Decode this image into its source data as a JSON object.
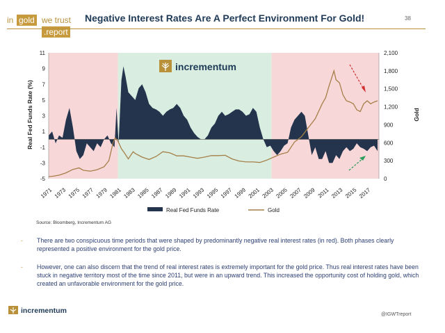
{
  "header": {
    "logo_words": [
      "in",
      "gold",
      "we trust",
      ".report"
    ],
    "title": "Negative Interest Rates Are A Perfect Environment For Gold!",
    "page_number": "38"
  },
  "chart_data": {
    "type": "area-line",
    "inner_logo": "incrementum",
    "y1label": "Real Fed Funds Rate (%)",
    "y2label": "Gold",
    "y1lim": [
      -5,
      11
    ],
    "y2lim": [
      0,
      2100
    ],
    "y1ticks": [
      "11",
      "9",
      "7",
      "5",
      "3",
      "1",
      "-1",
      "-3",
      "-5"
    ],
    "y2ticks": [
      "2,100",
      "1,800",
      "1,500",
      "1,200",
      "900",
      "600",
      "300",
      "0"
    ],
    "xticks": [
      "1971",
      "1973",
      "1975",
      "1977",
      "1979",
      "1981",
      "1983",
      "1985",
      "1987",
      "1989",
      "1991",
      "1993",
      "1995",
      "1997",
      "1999",
      "2001",
      "2003",
      "2005",
      "2007",
      "2009",
      "2011",
      "2013",
      "2015",
      "2017"
    ],
    "shaded_periods": [
      {
        "from": 1970.5,
        "to": 1980.5,
        "color": "#f8d7d9",
        "label": "negative real rates"
      },
      {
        "from": 1980.5,
        "to": 2002.7,
        "color": "#d9eee1",
        "label": "positive real rates"
      },
      {
        "from": 2002.7,
        "to": 2018.2,
        "color": "#f8d7d9",
        "label": "negative real rates"
      }
    ],
    "series": [
      {
        "name": "Real Fed Funds Rate",
        "type": "area",
        "color": "#24344d",
        "x": [
          1970.5,
          1971,
          1971.5,
          1972,
          1972.5,
          1973,
          1973.5,
          1974,
          1974.5,
          1975,
          1975.5,
          1976,
          1976.5,
          1977,
          1977.5,
          1978,
          1978.5,
          1979,
          1979.5,
          1980,
          1980.3,
          1980.6,
          1981,
          1981.3,
          1981.6,
          1982,
          1982.5,
          1983,
          1983.5,
          1984,
          1984.5,
          1985,
          1985.5,
          1986,
          1986.5,
          1987,
          1987.5,
          1988,
          1988.5,
          1989,
          1989.5,
          1990,
          1990.5,
          1991,
          1991.5,
          1992,
          1992.5,
          1993,
          1993.5,
          1994,
          1994.5,
          1995,
          1995.5,
          1996,
          1996.5,
          1997,
          1997.5,
          1998,
          1998.5,
          1999,
          1999.5,
          2000,
          2000.5,
          2001,
          2001.5,
          2002,
          2002.5,
          2003,
          2003.5,
          2004,
          2004.5,
          2005,
          2005.5,
          2006,
          2006.5,
          2007,
          2007.5,
          2008,
          2008.5,
          2009,
          2009.5,
          2010,
          2010.5,
          2011,
          2011.5,
          2012,
          2012.5,
          2013,
          2013.5,
          2014,
          2014.5,
          2015,
          2015.5,
          2016,
          2016.5,
          2017,
          2017.5,
          2018
        ],
        "values": [
          0.5,
          1.0,
          -0.5,
          0.5,
          0.2,
          2.5,
          4.0,
          1.5,
          -1.5,
          -2.5,
          -2.0,
          -0.5,
          -1.0,
          -1.5,
          -0.5,
          -1.0,
          0.0,
          0.5,
          -0.5,
          -1.0,
          4.0,
          -0.5,
          7.5,
          9.3,
          8.0,
          6.0,
          5.5,
          5.0,
          6.5,
          7.0,
          6.0,
          4.5,
          4.0,
          3.8,
          3.5,
          3.0,
          3.5,
          3.8,
          4.0,
          4.5,
          4.0,
          3.0,
          2.5,
          1.5,
          0.8,
          0.3,
          0.0,
          0.0,
          0.5,
          1.5,
          2.0,
          3.0,
          3.5,
          3.0,
          3.2,
          3.5,
          3.8,
          3.8,
          3.5,
          3.0,
          3.2,
          4.0,
          3.5,
          1.5,
          0.0,
          -1.0,
          -0.8,
          -1.5,
          -2.0,
          -1.5,
          -0.8,
          -0.5,
          1.5,
          2.5,
          3.0,
          3.5,
          3.0,
          0.5,
          -2.0,
          -1.0,
          -2.5,
          -2.5,
          -1.5,
          -3.0,
          -3.0,
          -2.0,
          -2.5,
          -1.5,
          -1.0,
          -1.5,
          -1.2,
          -0.5,
          -1.0,
          -1.2,
          -1.5,
          -1.0,
          -0.8,
          -1.5
        ]
      },
      {
        "name": "Gold",
        "type": "line",
        "color": "#a57f48",
        "axis": "right",
        "x": [
          1970.5,
          1971,
          1972,
          1973,
          1974,
          1974.9,
          1975.5,
          1976.5,
          1977.5,
          1978.5,
          1979.2,
          1979.8,
          1980.1,
          1980.5,
          1981,
          1981.5,
          1982,
          1982.7,
          1983,
          1984,
          1985,
          1986,
          1987,
          1988,
          1989,
          1990,
          1991,
          1992,
          1993,
          1994,
          1995,
          1996,
          1997,
          1998,
          1999,
          2000,
          2001,
          2002,
          2003,
          2004,
          2005,
          2006,
          2007,
          2008,
          2009,
          2010,
          2010.5,
          2011,
          2011.7,
          2012,
          2012.5,
          2013,
          2013.5,
          2014,
          2014.5,
          2015,
          2015.5,
          2016,
          2016.5,
          2017,
          2017.5,
          2018
        ],
        "values": [
          36,
          40,
          58,
          97,
          154,
          180,
          140,
          125,
          150,
          200,
          300,
          600,
          680,
          630,
          500,
          420,
          330,
          450,
          420,
          360,
          320,
          370,
          450,
          430,
          380,
          380,
          360,
          340,
          360,
          385,
          385,
          390,
          330,
          295,
          280,
          280,
          270,
          310,
          360,
          410,
          440,
          610,
          700,
          850,
          1000,
          1250,
          1350,
          1550,
          1800,
          1650,
          1600,
          1400,
          1300,
          1280,
          1250,
          1150,
          1120,
          1250,
          1300,
          1250,
          1280,
          1300
        ]
      }
    ],
    "annotations": [
      "arrow: gold falling from 2011 peak (red)",
      "arrow: real rates trending up since 2011 (green)"
    ],
    "legend": {
      "position": "bottom",
      "items": [
        "Real Fed Funds Rate",
        "Gold"
      ]
    }
  },
  "source": "Source: Bloomberg, Incrementum AG",
  "bullets": [
    "There are two conspicuous time periods that were shaped by predominantly negative real interest rates (in red). Both phases clearly represented a positive environment for the gold price.",
    "However, one can also discern that the trend of real interest rates is extremely important for the gold price. Thus real interest rates have been stuck in negative territory most of the time since 2011, but were in an upward trend. This increased the opportunity cost of holding gold, which created an unfavorable environment for the gold price."
  ],
  "bullet_marker": "-",
  "footer": {
    "logo_text": "incrementum",
    "twitter": "@IGWTreport"
  }
}
